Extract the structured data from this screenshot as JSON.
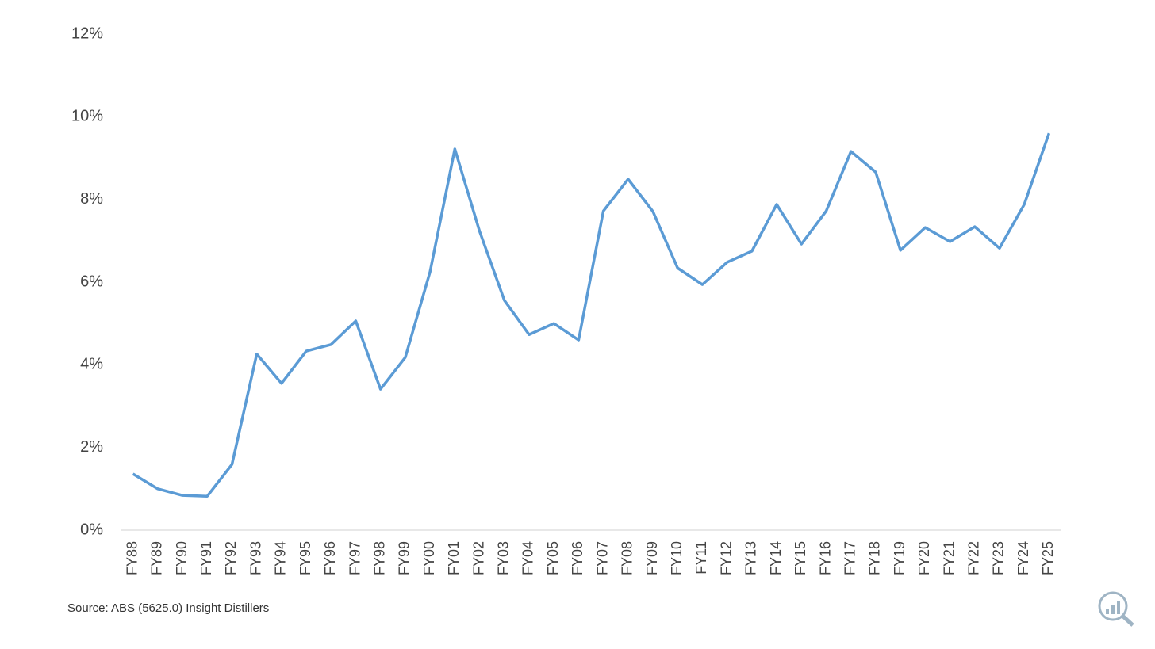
{
  "chart_data": {
    "type": "line",
    "categories": [
      "FY88",
      "FY89",
      "FY90",
      "FY91",
      "FY92",
      "FY93",
      "FY94",
      "FY95",
      "FY96",
      "FY97",
      "FY98",
      "FY99",
      "FY00",
      "FY01",
      "FY02",
      "FY03",
      "FY04",
      "FY05",
      "FY06",
      "FY07",
      "FY08",
      "FY09",
      "FY10",
      "FY11",
      "FY12",
      "FY13",
      "FY14",
      "FY15",
      "FY16",
      "FY17",
      "FY18",
      "FY19",
      "FY20",
      "FY21",
      "FY22",
      "FY23",
      "FY24",
      "FY25"
    ],
    "values": [
      1.36,
      1.0,
      0.84,
      0.82,
      1.59,
      4.26,
      3.55,
      4.33,
      4.49,
      5.06,
      3.41,
      4.18,
      6.25,
      9.22,
      7.23,
      5.56,
      4.73,
      5.0,
      4.6,
      7.72,
      8.49,
      7.71,
      6.34,
      5.94,
      6.48,
      6.75,
      7.88,
      6.92,
      7.72,
      9.16,
      8.66,
      6.77,
      7.32,
      6.98,
      7.34,
      6.82,
      7.88,
      9.6
    ],
    "color": "#5b9bd5",
    "ylim": [
      0,
      12
    ],
    "yticks": [
      {
        "value": 0,
        "label": "0%"
      },
      {
        "value": 2,
        "label": "2%"
      },
      {
        "value": 4,
        "label": "4%"
      },
      {
        "value": 6,
        "label": "6%"
      },
      {
        "value": 8,
        "label": "8%"
      },
      {
        "value": 10,
        "label": "10%"
      },
      {
        "value": 12,
        "label": "12%"
      }
    ],
    "grid": false,
    "source": "Source: ABS (5625.0) Insight Distillers"
  }
}
